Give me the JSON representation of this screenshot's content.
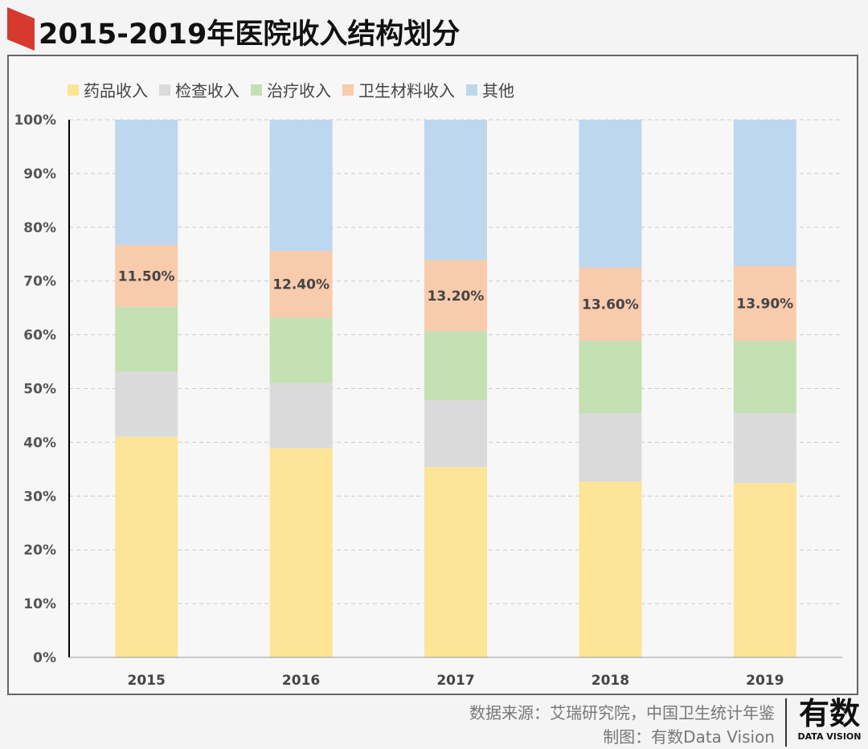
{
  "title": "2015-2019年医院收入结构划分",
  "source_line": "数据来源：艾瑞研究院，中国卫生统计年鉴",
  "credit_line": "制图：有数Data Vision",
  "logo": {
    "text": "有数",
    "subtext": "DATA VISION"
  },
  "chart_data": {
    "type": "bar",
    "stacked": true,
    "title": "",
    "xlabel": "",
    "ylabel": "",
    "categories": [
      "2015",
      "2016",
      "2017",
      "2018",
      "2019"
    ],
    "ylim": [
      0,
      100
    ],
    "yticks": [
      "0%",
      "10%",
      "20%",
      "30%",
      "40%",
      "50%",
      "60%",
      "70%",
      "80%",
      "90%",
      "100%"
    ],
    "grid": "horizontal-dashed",
    "legend_position": "top-left",
    "series": [
      {
        "name": "药品收入",
        "color": "#fde597",
        "values": [
          41.0,
          38.9,
          35.4,
          32.7,
          32.4
        ]
      },
      {
        "name": "检查收入",
        "color": "#dadada",
        "values": [
          12.1,
          12.1,
          12.4,
          12.7,
          13.0
        ]
      },
      {
        "name": "治疗收入",
        "color": "#c5e0b3",
        "values": [
          12.1,
          12.2,
          12.9,
          13.5,
          13.5
        ]
      },
      {
        "name": "卫生材料收入",
        "color": "#f8cbad",
        "values": [
          11.5,
          12.4,
          13.2,
          13.6,
          13.9
        ],
        "data_labels": [
          "11.50%",
          "12.40%",
          "13.20%",
          "13.60%",
          "13.90%"
        ]
      },
      {
        "name": "其他",
        "color": "#bdd7ee",
        "values": [
          23.3,
          24.4,
          26.1,
          27.5,
          27.2
        ]
      }
    ]
  }
}
